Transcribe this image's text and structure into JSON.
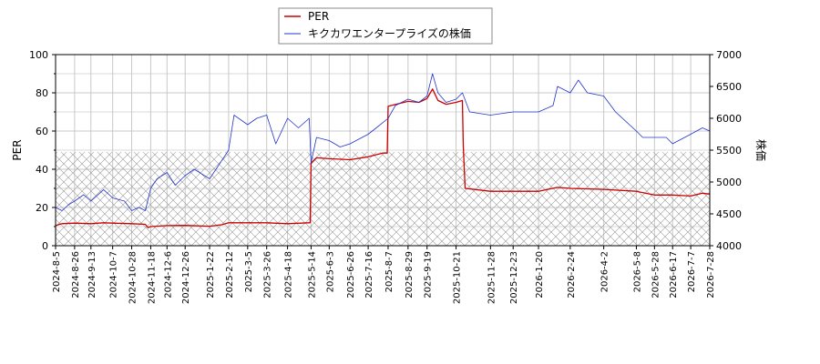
{
  "chart_data": {
    "type": "line",
    "title": "",
    "xlabel": "",
    "ylabel_left": "PER",
    "ylabel_right": "株価",
    "ylim_left": [
      0,
      100
    ],
    "ylim_right": [
      4000,
      7000
    ],
    "yticks_left": [
      "0",
      "20",
      "40",
      "60",
      "80",
      "100"
    ],
    "yticks_right": [
      "4000",
      "4500",
      "5000",
      "5500",
      "6000",
      "6500",
      "7000"
    ],
    "x_start": "2024-08-05",
    "x_end": "2026-07-28",
    "x_tick_labels": [
      "2024-8-5",
      "2024-8-26",
      "2024-9-13",
      "2024-10-7",
      "2024-10-28",
      "2024-11-18",
      "2024-12-6",
      "2024-12-26",
      "2025-1-22",
      "2025-2-12",
      "2025-3-5",
      "2025-3-26",
      "2025-4-18",
      "2025-5-14",
      "2025-6-3",
      "2025-6-26",
      "2025-7-16",
      "2025-8-7",
      "2025-8-29",
      "2025-9-19",
      "2025-10-21",
      "2025-11-28",
      "2025-12-23",
      "2026-1-20",
      "2026-2-24",
      "2026-4-2",
      "2026-5-8",
      "2026-5-28",
      "2026-6-17",
      "2026-7-7",
      "2026-7-28"
    ],
    "grid": true,
    "legend_position": "top-left",
    "hatched_band_left": [
      0,
      49
    ],
    "series": [
      {
        "name": "PER",
        "axis": "left",
        "color": "#cc0000",
        "points": [
          [
            "2024-08-05",
            10.5
          ],
          [
            "2024-08-12",
            11.5
          ],
          [
            "2024-08-26",
            11.8
          ],
          [
            "2024-09-13",
            11.5
          ],
          [
            "2024-09-27",
            12.0
          ],
          [
            "2024-10-07",
            11.8
          ],
          [
            "2024-10-28",
            11.5
          ],
          [
            "2024-11-12",
            11.2
          ],
          [
            "2024-11-15",
            9.5
          ],
          [
            "2024-11-18",
            10.0
          ],
          [
            "2024-12-06",
            10.5
          ],
          [
            "2024-12-26",
            10.6
          ],
          [
            "2025-01-22",
            10.2
          ],
          [
            "2025-02-05",
            11.0
          ],
          [
            "2025-02-12",
            12.0
          ],
          [
            "2025-03-05",
            12.0
          ],
          [
            "2025-03-26",
            12.0
          ],
          [
            "2025-04-18",
            11.5
          ],
          [
            "2025-05-12",
            12.0
          ],
          [
            "2025-05-13",
            12.0
          ],
          [
            "2025-05-14",
            43.0
          ],
          [
            "2025-05-20",
            46.0
          ],
          [
            "2025-06-03",
            45.5
          ],
          [
            "2025-06-26",
            45.0
          ],
          [
            "2025-07-16",
            46.5
          ],
          [
            "2025-08-01",
            48.5
          ],
          [
            "2025-08-06",
            48.5
          ],
          [
            "2025-08-07",
            73.0
          ],
          [
            "2025-08-29",
            75.5
          ],
          [
            "2025-09-10",
            75.0
          ],
          [
            "2025-09-19",
            77.0
          ],
          [
            "2025-09-25",
            82.0
          ],
          [
            "2025-10-01",
            76.0
          ],
          [
            "2025-10-10",
            74.0
          ],
          [
            "2025-10-21",
            75.0
          ],
          [
            "2025-10-28",
            76.0
          ],
          [
            "2025-10-29",
            52.0
          ],
          [
            "2025-10-31",
            30.0
          ],
          [
            "2025-11-28",
            28.5
          ],
          [
            "2025-12-23",
            28.5
          ],
          [
            "2026-01-20",
            28.5
          ],
          [
            "2026-02-10",
            30.5
          ],
          [
            "2026-02-24",
            30.0
          ],
          [
            "2026-04-02",
            29.5
          ],
          [
            "2026-05-08",
            28.5
          ],
          [
            "2026-05-28",
            26.5
          ],
          [
            "2026-06-17",
            26.5
          ],
          [
            "2026-07-07",
            26.0
          ],
          [
            "2026-07-20",
            27.5
          ],
          [
            "2026-07-28",
            27.0
          ]
        ]
      },
      {
        "name": "キクカワエンタープライズの株価",
        "axis": "right",
        "color": "#2233cc",
        "points": [
          [
            "2024-08-05",
            4600
          ],
          [
            "2024-08-12",
            4550
          ],
          [
            "2024-08-20",
            4650
          ],
          [
            "2024-08-26",
            4700
          ],
          [
            "2024-09-05",
            4800
          ],
          [
            "2024-09-13",
            4700
          ],
          [
            "2024-09-27",
            4880
          ],
          [
            "2024-10-07",
            4750
          ],
          [
            "2024-10-20",
            4700
          ],
          [
            "2024-10-28",
            4550
          ],
          [
            "2024-11-05",
            4600
          ],
          [
            "2024-11-12",
            4550
          ],
          [
            "2024-11-18",
            4900
          ],
          [
            "2024-11-25",
            5050
          ],
          [
            "2024-12-06",
            5150
          ],
          [
            "2024-12-15",
            4950
          ],
          [
            "2024-12-26",
            5100
          ],
          [
            "2025-01-05",
            5200
          ],
          [
            "2025-01-22",
            5050
          ],
          [
            "2025-02-05",
            5350
          ],
          [
            "2025-02-12",
            5500
          ],
          [
            "2025-02-18",
            6050
          ],
          [
            "2025-03-05",
            5900
          ],
          [
            "2025-03-15",
            6000
          ],
          [
            "2025-03-26",
            6050
          ],
          [
            "2025-04-05",
            5600
          ],
          [
            "2025-04-18",
            6000
          ],
          [
            "2025-04-30",
            5850
          ],
          [
            "2025-05-12",
            6000
          ],
          [
            "2025-05-14",
            5300
          ],
          [
            "2025-05-20",
            5700
          ],
          [
            "2025-06-03",
            5650
          ],
          [
            "2025-06-15",
            5550
          ],
          [
            "2025-06-26",
            5600
          ],
          [
            "2025-07-16",
            5750
          ],
          [
            "2025-07-25",
            5850
          ],
          [
            "2025-08-07",
            6000
          ],
          [
            "2025-08-15",
            6200
          ],
          [
            "2025-08-29",
            6300
          ],
          [
            "2025-09-10",
            6250
          ],
          [
            "2025-09-19",
            6350
          ],
          [
            "2025-09-25",
            6700
          ],
          [
            "2025-10-01",
            6400
          ],
          [
            "2025-10-10",
            6250
          ],
          [
            "2025-10-21",
            6300
          ],
          [
            "2025-10-28",
            6400
          ],
          [
            "2025-11-05",
            6100
          ],
          [
            "2025-11-28",
            6050
          ],
          [
            "2025-12-23",
            6100
          ],
          [
            "2026-01-20",
            6100
          ],
          [
            "2026-02-05",
            6200
          ],
          [
            "2026-02-10",
            6500
          ],
          [
            "2026-02-24",
            6400
          ],
          [
            "2026-03-05",
            6600
          ],
          [
            "2026-03-15",
            6400
          ],
          [
            "2026-04-02",
            6350
          ],
          [
            "2026-04-15",
            6100
          ],
          [
            "2026-05-08",
            5800
          ],
          [
            "2026-05-15",
            5700
          ],
          [
            "2026-05-28",
            5700
          ],
          [
            "2026-06-10",
            5700
          ],
          [
            "2026-06-17",
            5600
          ],
          [
            "2026-07-07",
            5750
          ],
          [
            "2026-07-20",
            5850
          ],
          [
            "2026-07-28",
            5800
          ]
        ]
      }
    ]
  }
}
